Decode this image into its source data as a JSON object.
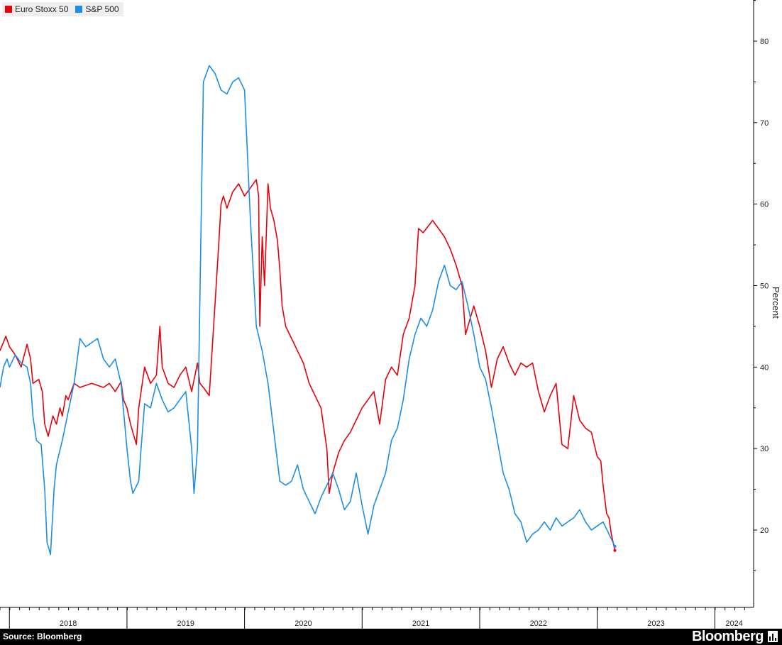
{
  "chart_data": {
    "type": "line",
    "ylabel": "Percent",
    "ylim": [
      11,
      85
    ],
    "yticks": [
      20,
      30,
      40,
      50,
      60,
      70,
      80
    ],
    "xlim": [
      2017.92,
      2024.33
    ],
    "x_tick_labels": [
      "2018",
      "2019",
      "2020",
      "2021",
      "2022",
      "2023",
      "2024"
    ],
    "grid": false,
    "legend_position": "top-left",
    "series": [
      {
        "name": "Euro Stoxx 50",
        "color": "#e8000b",
        "points": [
          [
            2017.92,
            42.0
          ],
          [
            2017.97,
            43.8
          ],
          [
            2018.0,
            42.5
          ],
          [
            2018.05,
            41.5
          ],
          [
            2018.1,
            40.0
          ],
          [
            2018.15,
            42.8
          ],
          [
            2018.18,
            41.0
          ],
          [
            2018.2,
            38.0
          ],
          [
            2018.25,
            38.5
          ],
          [
            2018.28,
            37.0
          ],
          [
            2018.3,
            33.0
          ],
          [
            2018.33,
            31.5
          ],
          [
            2018.37,
            34.0
          ],
          [
            2018.4,
            33.0
          ],
          [
            2018.43,
            35.0
          ],
          [
            2018.45,
            34.0
          ],
          [
            2018.48,
            36.5
          ],
          [
            2018.5,
            36.0
          ],
          [
            2018.55,
            38.0
          ],
          [
            2018.6,
            37.5
          ],
          [
            2018.7,
            38.0
          ],
          [
            2018.8,
            37.5
          ],
          [
            2018.85,
            38.0
          ],
          [
            2018.9,
            37.0
          ],
          [
            2018.95,
            38.2
          ],
          [
            2018.97,
            36.0
          ],
          [
            2019.0,
            35.0
          ],
          [
            2019.03,
            33.0
          ],
          [
            2019.05,
            32.0
          ],
          [
            2019.08,
            30.5
          ],
          [
            2019.1,
            35.0
          ],
          [
            2019.15,
            40.0
          ],
          [
            2019.2,
            38.0
          ],
          [
            2019.25,
            39.0
          ],
          [
            2019.28,
            45.0
          ],
          [
            2019.3,
            40.0
          ],
          [
            2019.35,
            38.0
          ],
          [
            2019.4,
            37.5
          ],
          [
            2019.45,
            39.0
          ],
          [
            2019.5,
            40.0
          ],
          [
            2019.55,
            37.0
          ],
          [
            2019.6,
            40.5
          ],
          [
            2019.62,
            38.0
          ],
          [
            2019.65,
            37.5
          ],
          [
            2019.7,
            36.5
          ],
          [
            2019.75,
            48.0
          ],
          [
            2019.78,
            55.0
          ],
          [
            2019.8,
            60.0
          ],
          [
            2019.82,
            61.0
          ],
          [
            2019.85,
            59.5
          ],
          [
            2019.9,
            61.5
          ],
          [
            2019.95,
            62.5
          ],
          [
            2020.0,
            61.0
          ],
          [
            2020.05,
            62.0
          ],
          [
            2020.1,
            63.0
          ],
          [
            2020.12,
            61.0
          ],
          [
            2020.13,
            45.0
          ],
          [
            2020.15,
            56.0
          ],
          [
            2020.17,
            50.0
          ],
          [
            2020.2,
            62.5
          ],
          [
            2020.22,
            59.5
          ],
          [
            2020.25,
            58.0
          ],
          [
            2020.28,
            55.5
          ],
          [
            2020.3,
            52.0
          ],
          [
            2020.32,
            47.5
          ],
          [
            2020.35,
            45.0
          ],
          [
            2020.4,
            43.5
          ],
          [
            2020.45,
            42.0
          ],
          [
            2020.5,
            40.5
          ],
          [
            2020.55,
            38.0
          ],
          [
            2020.6,
            36.5
          ],
          [
            2020.65,
            35.0
          ],
          [
            2020.7,
            30.0
          ],
          [
            2020.72,
            24.5
          ],
          [
            2020.75,
            27.0
          ],
          [
            2020.8,
            29.5
          ],
          [
            2020.85,
            31.0
          ],
          [
            2020.9,
            32.0
          ],
          [
            2020.95,
            33.5
          ],
          [
            2021.0,
            35.0
          ],
          [
            2021.05,
            36.0
          ],
          [
            2021.1,
            37.0
          ],
          [
            2021.15,
            33.0
          ],
          [
            2021.2,
            38.5
          ],
          [
            2021.25,
            40.0
          ],
          [
            2021.3,
            39.0
          ],
          [
            2021.35,
            44.0
          ],
          [
            2021.4,
            46.0
          ],
          [
            2021.45,
            50.0
          ],
          [
            2021.48,
            57.0
          ],
          [
            2021.52,
            56.5
          ],
          [
            2021.6,
            58.0
          ],
          [
            2021.65,
            57.0
          ],
          [
            2021.7,
            56.0
          ],
          [
            2021.75,
            54.5
          ],
          [
            2021.8,
            52.5
          ],
          [
            2021.85,
            50.0
          ],
          [
            2021.88,
            44.0
          ],
          [
            2021.9,
            45.0
          ],
          [
            2021.95,
            47.5
          ],
          [
            2022.0,
            45.0
          ],
          [
            2022.05,
            42.0
          ],
          [
            2022.1,
            37.5
          ],
          [
            2022.15,
            41.0
          ],
          [
            2022.2,
            42.5
          ],
          [
            2022.25,
            40.5
          ],
          [
            2022.3,
            39.0
          ],
          [
            2022.35,
            40.5
          ],
          [
            2022.4,
            40.0
          ],
          [
            2022.45,
            40.5
          ],
          [
            2022.5,
            37.0
          ],
          [
            2022.55,
            34.5
          ],
          [
            2022.6,
            36.5
          ],
          [
            2022.65,
            38.0
          ],
          [
            2022.7,
            30.5
          ],
          [
            2022.75,
            30.0
          ],
          [
            2022.8,
            36.5
          ],
          [
            2022.85,
            33.5
          ],
          [
            2022.9,
            32.5
          ],
          [
            2022.95,
            32.0
          ],
          [
            2023.0,
            29.0
          ],
          [
            2023.03,
            28.5
          ],
          [
            2023.05,
            25.5
          ],
          [
            2023.08,
            22.0
          ],
          [
            2023.1,
            21.5
          ],
          [
            2023.12,
            19.5
          ],
          [
            2023.15,
            17.5
          ]
        ]
      },
      {
        "name": "S&P 500",
        "color": "#1d8ee6",
        "points": [
          [
            2017.92,
            37.5
          ],
          [
            2017.95,
            40.0
          ],
          [
            2017.98,
            41.0
          ],
          [
            2018.0,
            40.0
          ],
          [
            2018.05,
            41.5
          ],
          [
            2018.1,
            40.5
          ],
          [
            2018.15,
            40.0
          ],
          [
            2018.18,
            38.0
          ],
          [
            2018.2,
            34.0
          ],
          [
            2018.23,
            31.0
          ],
          [
            2018.27,
            30.5
          ],
          [
            2018.3,
            25.0
          ],
          [
            2018.32,
            18.5
          ],
          [
            2018.35,
            17.0
          ],
          [
            2018.38,
            25.0
          ],
          [
            2018.4,
            28.0
          ],
          [
            2018.45,
            31.0
          ],
          [
            2018.5,
            34.5
          ],
          [
            2018.55,
            38.0
          ],
          [
            2018.6,
            43.5
          ],
          [
            2018.65,
            42.5
          ],
          [
            2018.7,
            43.0
          ],
          [
            2018.75,
            43.5
          ],
          [
            2018.8,
            41.0
          ],
          [
            2018.85,
            40.0
          ],
          [
            2018.9,
            41.0
          ],
          [
            2018.95,
            38.0
          ],
          [
            2019.0,
            30.0
          ],
          [
            2019.03,
            26.0
          ],
          [
            2019.05,
            24.5
          ],
          [
            2019.1,
            26.0
          ],
          [
            2019.12,
            30.0
          ],
          [
            2019.15,
            35.5
          ],
          [
            2019.2,
            35.0
          ],
          [
            2019.25,
            38.0
          ],
          [
            2019.3,
            36.0
          ],
          [
            2019.35,
            34.5
          ],
          [
            2019.4,
            35.0
          ],
          [
            2019.45,
            36.0
          ],
          [
            2019.5,
            37.0
          ],
          [
            2019.55,
            30.0
          ],
          [
            2019.57,
            24.5
          ],
          [
            2019.6,
            30.0
          ],
          [
            2019.65,
            75.0
          ],
          [
            2019.7,
            77.0
          ],
          [
            2019.75,
            76.0
          ],
          [
            2019.8,
            74.0
          ],
          [
            2019.85,
            73.5
          ],
          [
            2019.9,
            75.0
          ],
          [
            2019.95,
            75.5
          ],
          [
            2020.0,
            74.0
          ],
          [
            2020.05,
            58.0
          ],
          [
            2020.1,
            45.0
          ],
          [
            2020.15,
            42.0
          ],
          [
            2020.2,
            38.0
          ],
          [
            2020.25,
            32.0
          ],
          [
            2020.3,
            26.0
          ],
          [
            2020.35,
            25.5
          ],
          [
            2020.4,
            26.0
          ],
          [
            2020.45,
            28.0
          ],
          [
            2020.5,
            25.0
          ],
          [
            2020.55,
            23.5
          ],
          [
            2020.6,
            22.0
          ],
          [
            2020.65,
            24.0
          ],
          [
            2020.7,
            25.5
          ],
          [
            2020.75,
            27.0
          ],
          [
            2020.8,
            25.0
          ],
          [
            2020.85,
            22.5
          ],
          [
            2020.9,
            23.5
          ],
          [
            2020.95,
            27.0
          ],
          [
            2021.0,
            23.0
          ],
          [
            2021.05,
            19.5
          ],
          [
            2021.1,
            23.0
          ],
          [
            2021.15,
            25.0
          ],
          [
            2021.2,
            27.0
          ],
          [
            2021.25,
            31.0
          ],
          [
            2021.3,
            32.5
          ],
          [
            2021.35,
            36.0
          ],
          [
            2021.4,
            41.0
          ],
          [
            2021.45,
            44.0
          ],
          [
            2021.5,
            46.0
          ],
          [
            2021.55,
            45.0
          ],
          [
            2021.6,
            47.0
          ],
          [
            2021.65,
            50.5
          ],
          [
            2021.7,
            52.5
          ],
          [
            2021.75,
            50.0
          ],
          [
            2021.8,
            49.5
          ],
          [
            2021.85,
            50.5
          ],
          [
            2021.9,
            47.5
          ],
          [
            2021.95,
            44.0
          ],
          [
            2022.0,
            40.0
          ],
          [
            2022.05,
            38.5
          ],
          [
            2022.1,
            35.0
          ],
          [
            2022.15,
            31.0
          ],
          [
            2022.2,
            27.0
          ],
          [
            2022.25,
            25.0
          ],
          [
            2022.3,
            22.0
          ],
          [
            2022.35,
            21.0
          ],
          [
            2022.4,
            18.5
          ],
          [
            2022.45,
            19.5
          ],
          [
            2022.5,
            20.0
          ],
          [
            2022.55,
            21.0
          ],
          [
            2022.6,
            20.0
          ],
          [
            2022.65,
            21.5
          ],
          [
            2022.7,
            20.5
          ],
          [
            2022.75,
            21.0
          ],
          [
            2022.8,
            21.5
          ],
          [
            2022.85,
            22.5
          ],
          [
            2022.9,
            21.0
          ],
          [
            2022.95,
            20.0
          ],
          [
            2023.0,
            20.5
          ],
          [
            2023.05,
            21.0
          ],
          [
            2023.1,
            19.5
          ],
          [
            2023.15,
            18.0
          ]
        ]
      }
    ]
  },
  "legend": [
    {
      "label": "Euro Stoxx 50",
      "color": "#e8000b"
    },
    {
      "label": "S&P 500",
      "color": "#1d8ee6"
    }
  ],
  "footer": {
    "source": "Source: Bloomberg",
    "brand": "Bloomberg"
  }
}
